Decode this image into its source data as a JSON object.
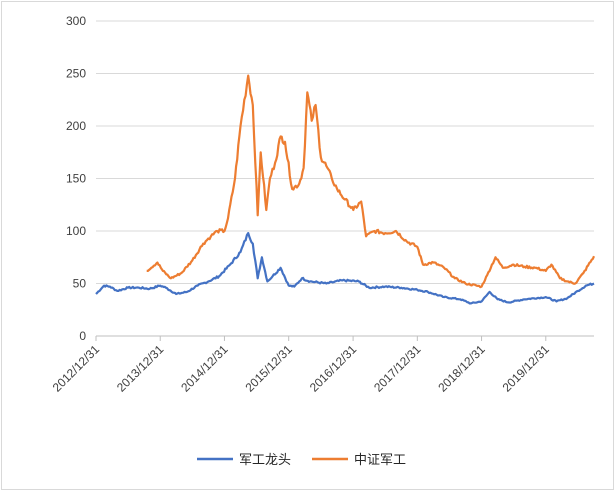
{
  "chart_data": {
    "type": "line",
    "title": "",
    "xlabel": "",
    "ylabel": "",
    "ylim": [
      0,
      300
    ],
    "yticks": [
      0,
      50,
      100,
      150,
      200,
      250,
      300
    ],
    "xlim": [
      "2012-12-31",
      "2020-09-30"
    ],
    "xticks": [
      "2012/12/31",
      "2013/12/31",
      "2014/12/31",
      "2015/12/31",
      "2016/12/31",
      "2017/12/31",
      "2018/12/31",
      "2019/12/31"
    ],
    "grid": "horizontal",
    "legend": "bottom",
    "series": [
      {
        "name": "军工龙头",
        "color": "#4472C4",
        "points": [
          [
            "2012-12-31",
            40
          ],
          [
            "2013-02-15",
            48
          ],
          [
            "2013-03-20",
            47
          ],
          [
            "2013-05-01",
            43
          ],
          [
            "2013-07-01",
            46
          ],
          [
            "2013-09-01",
            46
          ],
          [
            "2013-11-01",
            45
          ],
          [
            "2013-12-31",
            48
          ],
          [
            "2014-02-01",
            46
          ],
          [
            "2014-04-01",
            40
          ],
          [
            "2014-06-01",
            42
          ],
          [
            "2014-08-01",
            48
          ],
          [
            "2014-10-01",
            52
          ],
          [
            "2014-12-01",
            57
          ],
          [
            "2015-02-01",
            68
          ],
          [
            "2015-04-01",
            80
          ],
          [
            "2015-05-15",
            98
          ],
          [
            "2015-06-10",
            88
          ],
          [
            "2015-07-08",
            55
          ],
          [
            "2015-08-01",
            75
          ],
          [
            "2015-09-01",
            52
          ],
          [
            "2015-10-01",
            57
          ],
          [
            "2015-11-15",
            65
          ],
          [
            "2015-12-31",
            48
          ],
          [
            "2016-02-01",
            47
          ],
          [
            "2016-03-15",
            55
          ],
          [
            "2016-05-01",
            52
          ],
          [
            "2016-08-01",
            50
          ],
          [
            "2016-11-01",
            53
          ],
          [
            "2017-02-01",
            52
          ],
          [
            "2017-04-01",
            46
          ],
          [
            "2017-07-01",
            47
          ],
          [
            "2017-10-01",
            46
          ],
          [
            "2017-12-31",
            44
          ],
          [
            "2018-03-01",
            42
          ],
          [
            "2018-06-01",
            37
          ],
          [
            "2018-09-01",
            35
          ],
          [
            "2018-10-31",
            31
          ],
          [
            "2018-12-31",
            33
          ],
          [
            "2019-02-15",
            42
          ],
          [
            "2019-04-01",
            35
          ],
          [
            "2019-06-01",
            32
          ],
          [
            "2019-09-01",
            35
          ],
          [
            "2019-12-31",
            37
          ],
          [
            "2020-03-01",
            33
          ],
          [
            "2020-05-01",
            36
          ],
          [
            "2020-07-01",
            43
          ],
          [
            "2020-08-15",
            48
          ],
          [
            "2020-09-30",
            50
          ]
        ]
      },
      {
        "name": "中证军工",
        "color": "#ED7D31",
        "points": [
          [
            "2013-10-15",
            62
          ],
          [
            "2013-12-15",
            70
          ],
          [
            "2014-01-15",
            62
          ],
          [
            "2014-03-01",
            55
          ],
          [
            "2014-05-01",
            60
          ],
          [
            "2014-07-01",
            72
          ],
          [
            "2014-09-01",
            88
          ],
          [
            "2014-10-15",
            95
          ],
          [
            "2014-11-20",
            100
          ],
          [
            "2014-12-31",
            100
          ],
          [
            "2015-01-20",
            112
          ],
          [
            "2015-03-01",
            150
          ],
          [
            "2015-04-01",
            200
          ],
          [
            "2015-05-15",
            248
          ],
          [
            "2015-06-10",
            220
          ],
          [
            "2015-07-08",
            115
          ],
          [
            "2015-07-25",
            175
          ],
          [
            "2015-08-26",
            120
          ],
          [
            "2015-09-15",
            150
          ],
          [
            "2015-10-15",
            165
          ],
          [
            "2015-11-15",
            190
          ],
          [
            "2015-12-10",
            185
          ],
          [
            "2016-01-20",
            140
          ],
          [
            "2016-02-29",
            145
          ],
          [
            "2016-03-25",
            160
          ],
          [
            "2016-04-15",
            232
          ],
          [
            "2016-05-10",
            205
          ],
          [
            "2016-06-01",
            220
          ],
          [
            "2016-07-01",
            170
          ],
          [
            "2016-08-01",
            162
          ],
          [
            "2016-09-01",
            150
          ],
          [
            "2016-10-01",
            140
          ],
          [
            "2016-11-15",
            130
          ],
          [
            "2017-01-01",
            120
          ],
          [
            "2017-02-15",
            128
          ],
          [
            "2017-03-15",
            95
          ],
          [
            "2017-05-01",
            100
          ],
          [
            "2017-07-01",
            98
          ],
          [
            "2017-09-01",
            100
          ],
          [
            "2017-11-01",
            90
          ],
          [
            "2017-12-31",
            85
          ],
          [
            "2018-02-01",
            68
          ],
          [
            "2018-04-01",
            70
          ],
          [
            "2018-06-01",
            65
          ],
          [
            "2018-08-01",
            55
          ],
          [
            "2018-10-01",
            50
          ],
          [
            "2018-12-31",
            47
          ],
          [
            "2019-02-01",
            58
          ],
          [
            "2019-03-20",
            75
          ],
          [
            "2019-05-01",
            65
          ],
          [
            "2019-07-01",
            68
          ],
          [
            "2019-09-01",
            66
          ],
          [
            "2019-11-01",
            65
          ],
          [
            "2019-12-31",
            62
          ],
          [
            "2020-02-01",
            68
          ],
          [
            "2020-03-20",
            55
          ],
          [
            "2020-05-01",
            52
          ],
          [
            "2020-06-15",
            50
          ],
          [
            "2020-08-01",
            60
          ],
          [
            "2020-09-30",
            76
          ]
        ]
      }
    ]
  }
}
